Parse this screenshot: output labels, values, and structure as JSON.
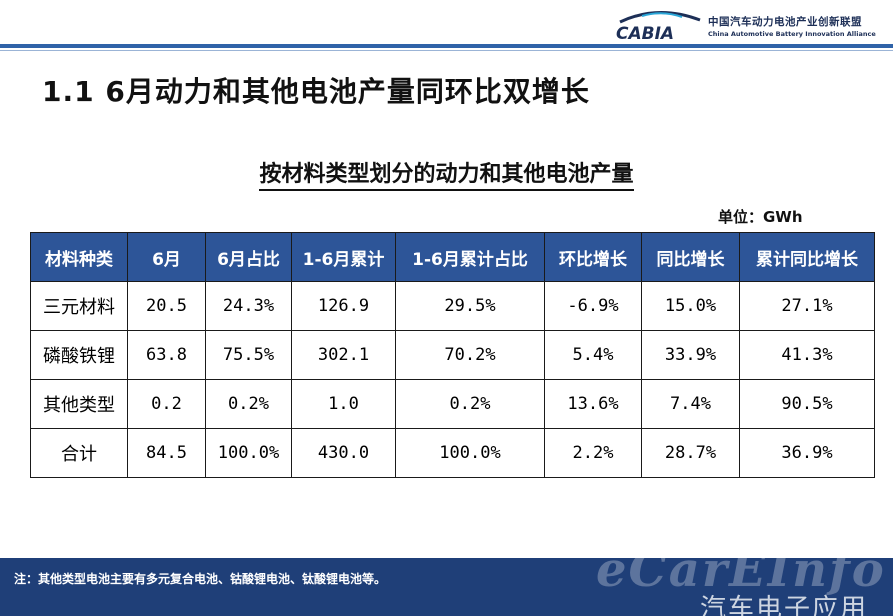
{
  "header": {
    "logo_text": "CABIA",
    "org_cn": "中国汽车动力电池产业创新联盟",
    "org_en": "China Automotive Battery Innovation Alliance",
    "accent_color": "#2f63a8"
  },
  "slide": {
    "title": "1.1  6月动力和其他电池产量同环比双增长"
  },
  "table": {
    "title": "按材料类型划分的动力和其他电池产量",
    "unit": "单位：GWh",
    "header_color": "#2d5598",
    "columns": [
      "材料种类",
      "6月",
      "6月占比",
      "1-6月累计",
      "1-6月累计占比",
      "环比增长",
      "同比增长",
      "累计同比增长"
    ],
    "rows": [
      {
        "type": "三元材料",
        "june": "20.5",
        "june_share": "24.3%",
        "ytd": "126.9",
        "ytd_share": "29.5%",
        "mom": "-6.9%",
        "yoy": "15.0%",
        "ytd_yoy": "27.1%"
      },
      {
        "type": "磷酸铁锂",
        "june": "63.8",
        "june_share": "75.5%",
        "ytd": "302.1",
        "ytd_share": "70.2%",
        "mom": "5.4%",
        "yoy": "33.9%",
        "ytd_yoy": "41.3%"
      },
      {
        "type": "其他类型",
        "june": "0.2",
        "june_share": "0.2%",
        "ytd": "1.0",
        "ytd_share": "0.2%",
        "mom": "13.6%",
        "yoy": "7.4%",
        "ytd_yoy": "90.5%"
      },
      {
        "type": "合计",
        "june": "84.5",
        "june_share": "100.0%",
        "ytd": "430.0",
        "ytd_share": "100.0%",
        "mom": "2.2%",
        "yoy": "28.7%",
        "ytd_yoy": "36.9%"
      }
    ]
  },
  "footer": {
    "note": "注：其他类型电池主要有多元复合电池、钴酸锂电池、钛酸锂电池等。",
    "watermark_en": "eCarEInfo",
    "watermark_cn": "汽车电子应用",
    "background_color": "#1f3f78"
  }
}
